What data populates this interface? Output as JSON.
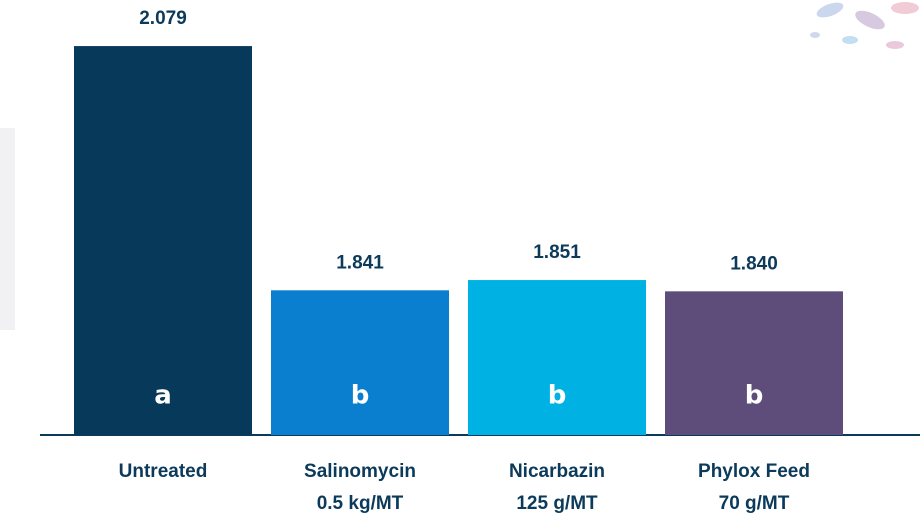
{
  "chart_data": {
    "type": "bar",
    "categories": [
      [
        "Untreated"
      ],
      [
        "Salinomycin",
        "0.5 kg/MT"
      ],
      [
        "Nicarbazin",
        "125 g/MT"
      ],
      [
        "Phylox Feed",
        "70 g/MT"
      ]
    ],
    "values": [
      2.079,
      1.841,
      1.851,
      1.84
    ],
    "value_labels": [
      "2.079",
      "1.841",
      "1.851",
      "1.840"
    ],
    "annotations": [
      "a",
      "b",
      "b",
      "b"
    ],
    "colors": [
      "#073a5a",
      "#0b7fcf",
      "#00b2e3",
      "#5e4d7a"
    ],
    "ylim": [
      1.7,
      2.12
    ]
  }
}
